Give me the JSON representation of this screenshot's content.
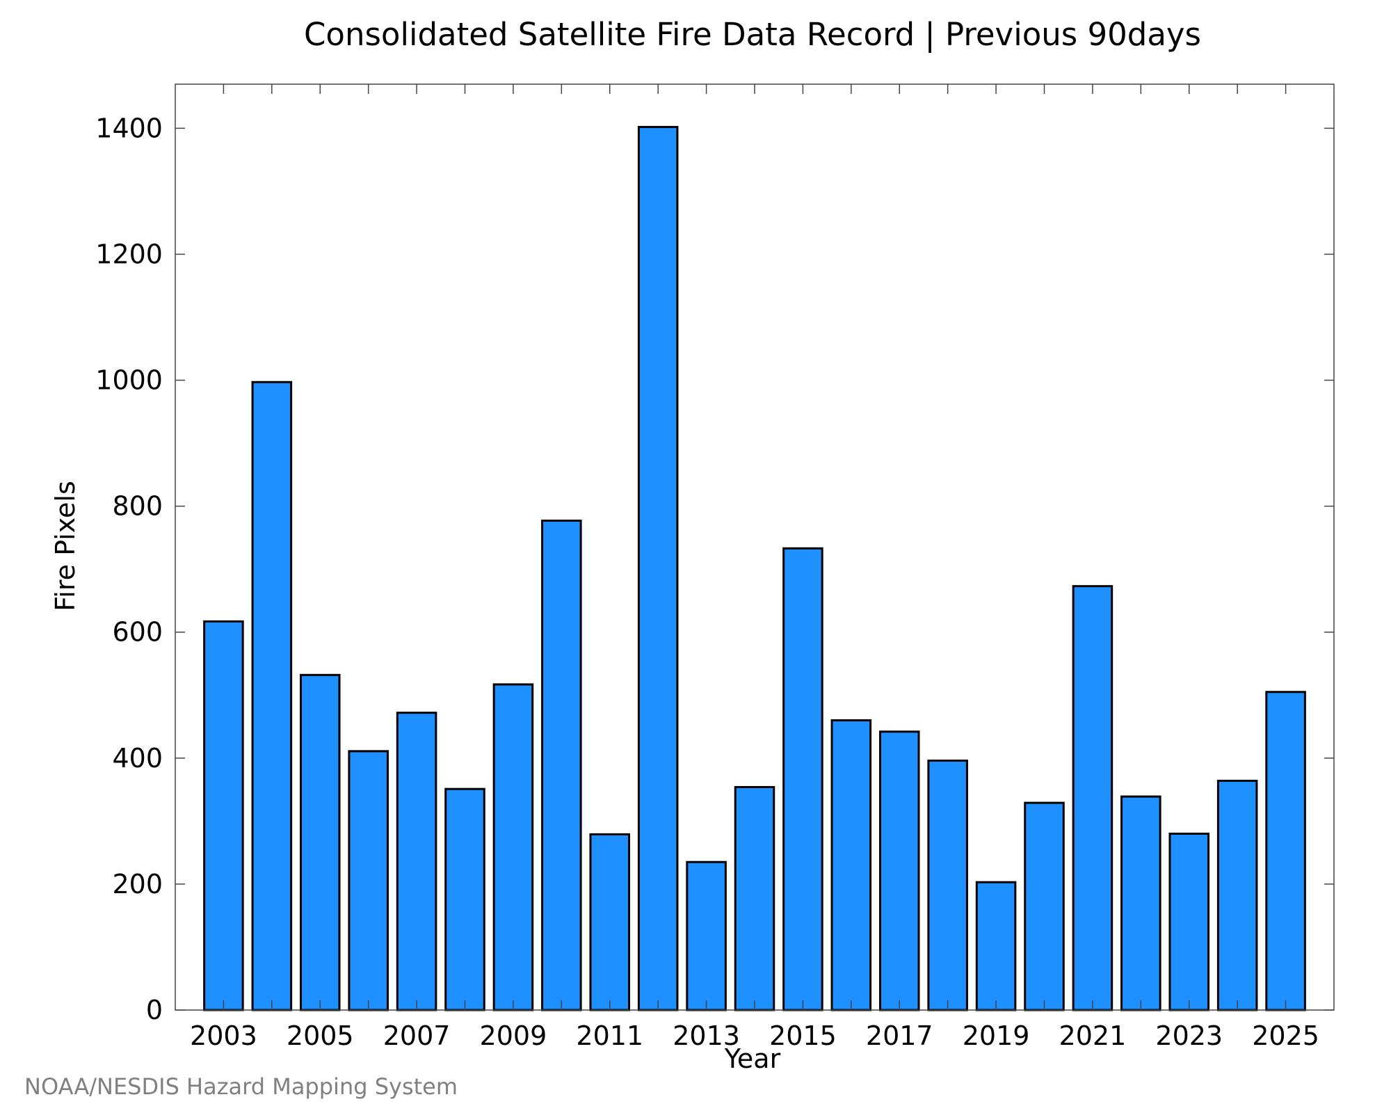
{
  "chart_data": {
    "type": "bar",
    "title": "Consolidated Satellite Fire Data Record | Previous 90days",
    "xlabel": "Year",
    "ylabel": "Fire Pixels",
    "categories": [
      "2003",
      "2004",
      "2005",
      "2006",
      "2007",
      "2008",
      "2009",
      "2010",
      "2011",
      "2012",
      "2013",
      "2014",
      "2015",
      "2016",
      "2017",
      "2018",
      "2019",
      "2020",
      "2021",
      "2022",
      "2023",
      "2024",
      "2025"
    ],
    "values": [
      617,
      997,
      532,
      411,
      472,
      351,
      517,
      777,
      279,
      1402,
      235,
      354,
      733,
      460,
      442,
      396,
      203,
      329,
      673,
      339,
      280,
      364,
      505
    ],
    "x_tick_labels": [
      "2003",
      "2005",
      "2007",
      "2009",
      "2011",
      "2013",
      "2015",
      "2017",
      "2019",
      "2021",
      "2023",
      "2025"
    ],
    "y_tick_labels": [
      "0",
      "200",
      "400",
      "600",
      "800",
      "1000",
      "1200",
      "1400"
    ],
    "ylim": [
      0,
      1470
    ],
    "grid": false,
    "legend": "none",
    "bar_color": "#1e90ff",
    "bar_edge_color": "#000000",
    "source": "NOAA/NESDIS Hazard Mapping System"
  }
}
